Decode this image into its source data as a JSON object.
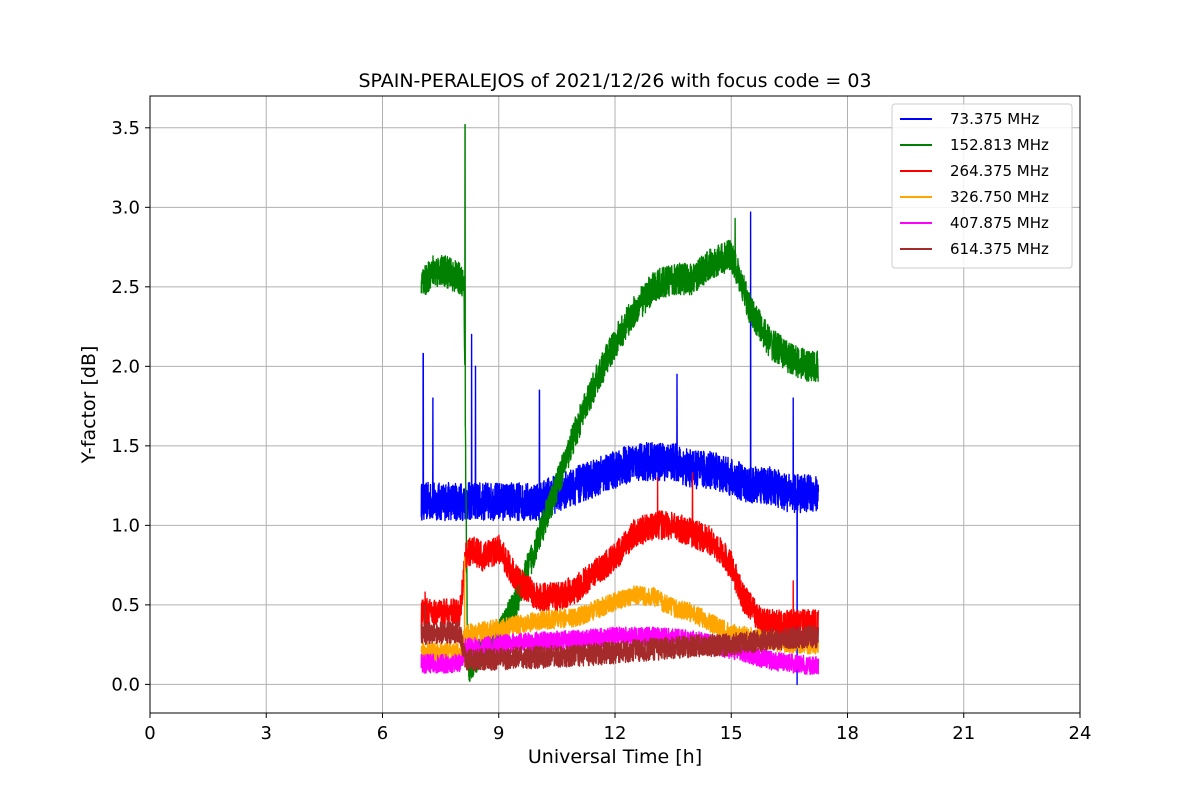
{
  "chart_data": {
    "type": "line",
    "title": "SPAIN-PERALEJOS of 2021/12/26 with focus code = 03",
    "xlabel": "Universal Time [h]",
    "ylabel": "Y-factor [dB]",
    "xlim": [
      0,
      24
    ],
    "ylim": [
      -0.18,
      3.7
    ],
    "xticks": [
      0,
      3,
      6,
      9,
      12,
      15,
      18,
      21,
      24
    ],
    "xtick_labels": [
      "0",
      "3",
      "6",
      "9",
      "12",
      "15",
      "18",
      "21",
      "24"
    ],
    "yticks": [
      0.0,
      0.5,
      1.0,
      1.5,
      2.0,
      2.5,
      3.0,
      3.5
    ],
    "ytick_labels": [
      "0.0",
      "0.5",
      "1.0",
      "1.5",
      "2.0",
      "2.5",
      "3.0",
      "3.5"
    ],
    "grid": true,
    "legend_position": "top-right",
    "series": [
      {
        "name": " 73.375 MHz",
        "color": "#0000ff",
        "noise": 0.12,
        "x": [
          7.0,
          7.5,
          8.0,
          8.5,
          9.0,
          9.5,
          10.0,
          10.5,
          11.0,
          11.5,
          12.0,
          12.5,
          13.0,
          13.5,
          14.0,
          14.5,
          15.0,
          15.5,
          16.0,
          16.5,
          17.0,
          17.25
        ],
        "y": [
          1.15,
          1.15,
          1.15,
          1.15,
          1.15,
          1.15,
          1.15,
          1.2,
          1.25,
          1.3,
          1.35,
          1.4,
          1.4,
          1.4,
          1.35,
          1.35,
          1.3,
          1.25,
          1.25,
          1.2,
          1.2,
          1.2
        ],
        "spikes": [
          [
            7.05,
            2.08
          ],
          [
            7.3,
            1.8
          ],
          [
            8.3,
            2.2
          ],
          [
            8.4,
            2.0
          ],
          [
            10.05,
            1.85
          ],
          [
            13.6,
            1.95
          ],
          [
            15.5,
            2.97
          ],
          [
            16.6,
            1.8
          ],
          [
            16.7,
            0.0
          ]
        ]
      },
      {
        "name": "152.813 MHz",
        "color": "#008000",
        "noise": 0.1,
        "x": [
          7.0,
          7.3,
          7.6,
          8.0,
          8.1,
          8.15,
          8.2,
          8.5,
          9.0,
          9.5,
          10.0,
          10.5,
          11.0,
          11.5,
          12.0,
          12.5,
          13.0,
          13.5,
          14.0,
          14.5,
          15.0,
          15.5,
          16.0,
          16.5,
          17.0,
          17.25
        ],
        "y": [
          2.5,
          2.6,
          2.6,
          2.55,
          2.5,
          1.3,
          0.1,
          0.2,
          0.3,
          0.55,
          0.9,
          1.25,
          1.6,
          1.9,
          2.15,
          2.35,
          2.5,
          2.55,
          2.55,
          2.65,
          2.7,
          2.35,
          2.15,
          2.05,
          2.0,
          2.0
        ],
        "spikes": [
          [
            8.13,
            3.52
          ],
          [
            15.1,
            2.93
          ]
        ]
      },
      {
        "name": "264.375 MHz",
        "color": "#ff0000",
        "noise": 0.09,
        "x": [
          7.0,
          7.5,
          8.0,
          8.15,
          8.3,
          8.6,
          9.0,
          9.5,
          10.0,
          10.5,
          11.0,
          11.5,
          12.0,
          12.5,
          13.0,
          13.5,
          14.0,
          14.5,
          15.0,
          15.3,
          15.7,
          16.0,
          16.5,
          17.0,
          17.25
        ],
        "y": [
          0.45,
          0.45,
          0.45,
          0.8,
          0.85,
          0.8,
          0.85,
          0.65,
          0.55,
          0.55,
          0.6,
          0.7,
          0.8,
          0.95,
          1.0,
          1.0,
          0.95,
          0.9,
          0.75,
          0.55,
          0.42,
          0.38,
          0.38,
          0.38,
          0.38
        ],
        "spikes": [
          [
            7.1,
            0.58
          ],
          [
            13.1,
            1.3
          ],
          [
            14.0,
            1.33
          ],
          [
            16.6,
            0.65
          ]
        ]
      },
      {
        "name": "326.750 MHz",
        "color": "#ffa500",
        "noise": 0.06,
        "x": [
          7.0,
          8.0,
          8.15,
          8.5,
          9.0,
          10.0,
          11.0,
          11.5,
          12.0,
          12.5,
          13.0,
          13.5,
          14.0,
          14.5,
          15.0,
          15.5,
          16.0,
          17.0,
          17.25
        ],
        "y": [
          0.2,
          0.2,
          0.32,
          0.33,
          0.35,
          0.4,
          0.42,
          0.47,
          0.52,
          0.56,
          0.55,
          0.48,
          0.45,
          0.38,
          0.32,
          0.3,
          0.27,
          0.25,
          0.25
        ],
        "spikes": [
          [
            8.12,
            0.8
          ]
        ]
      },
      {
        "name": "407.875 MHz",
        "color": "#ff00ff",
        "noise": 0.06,
        "x": [
          7.0,
          8.0,
          8.15,
          9.0,
          10.0,
          11.0,
          12.0,
          13.0,
          14.0,
          15.0,
          16.0,
          17.0,
          17.25
        ],
        "y": [
          0.13,
          0.13,
          0.23,
          0.25,
          0.27,
          0.28,
          0.3,
          0.3,
          0.28,
          0.22,
          0.15,
          0.12,
          0.12
        ],
        "spikes": []
      },
      {
        "name": "614.375 MHz",
        "color": "#a52a2a",
        "noise": 0.07,
        "x": [
          7.0,
          8.0,
          8.15,
          9.0,
          10.0,
          11.0,
          12.0,
          13.0,
          14.0,
          15.0,
          16.0,
          17.0,
          17.25
        ],
        "y": [
          0.32,
          0.33,
          0.15,
          0.16,
          0.17,
          0.18,
          0.2,
          0.22,
          0.24,
          0.25,
          0.28,
          0.3,
          0.3
        ],
        "spikes": [
          [
            7.1,
            0.5
          ]
        ]
      }
    ]
  }
}
